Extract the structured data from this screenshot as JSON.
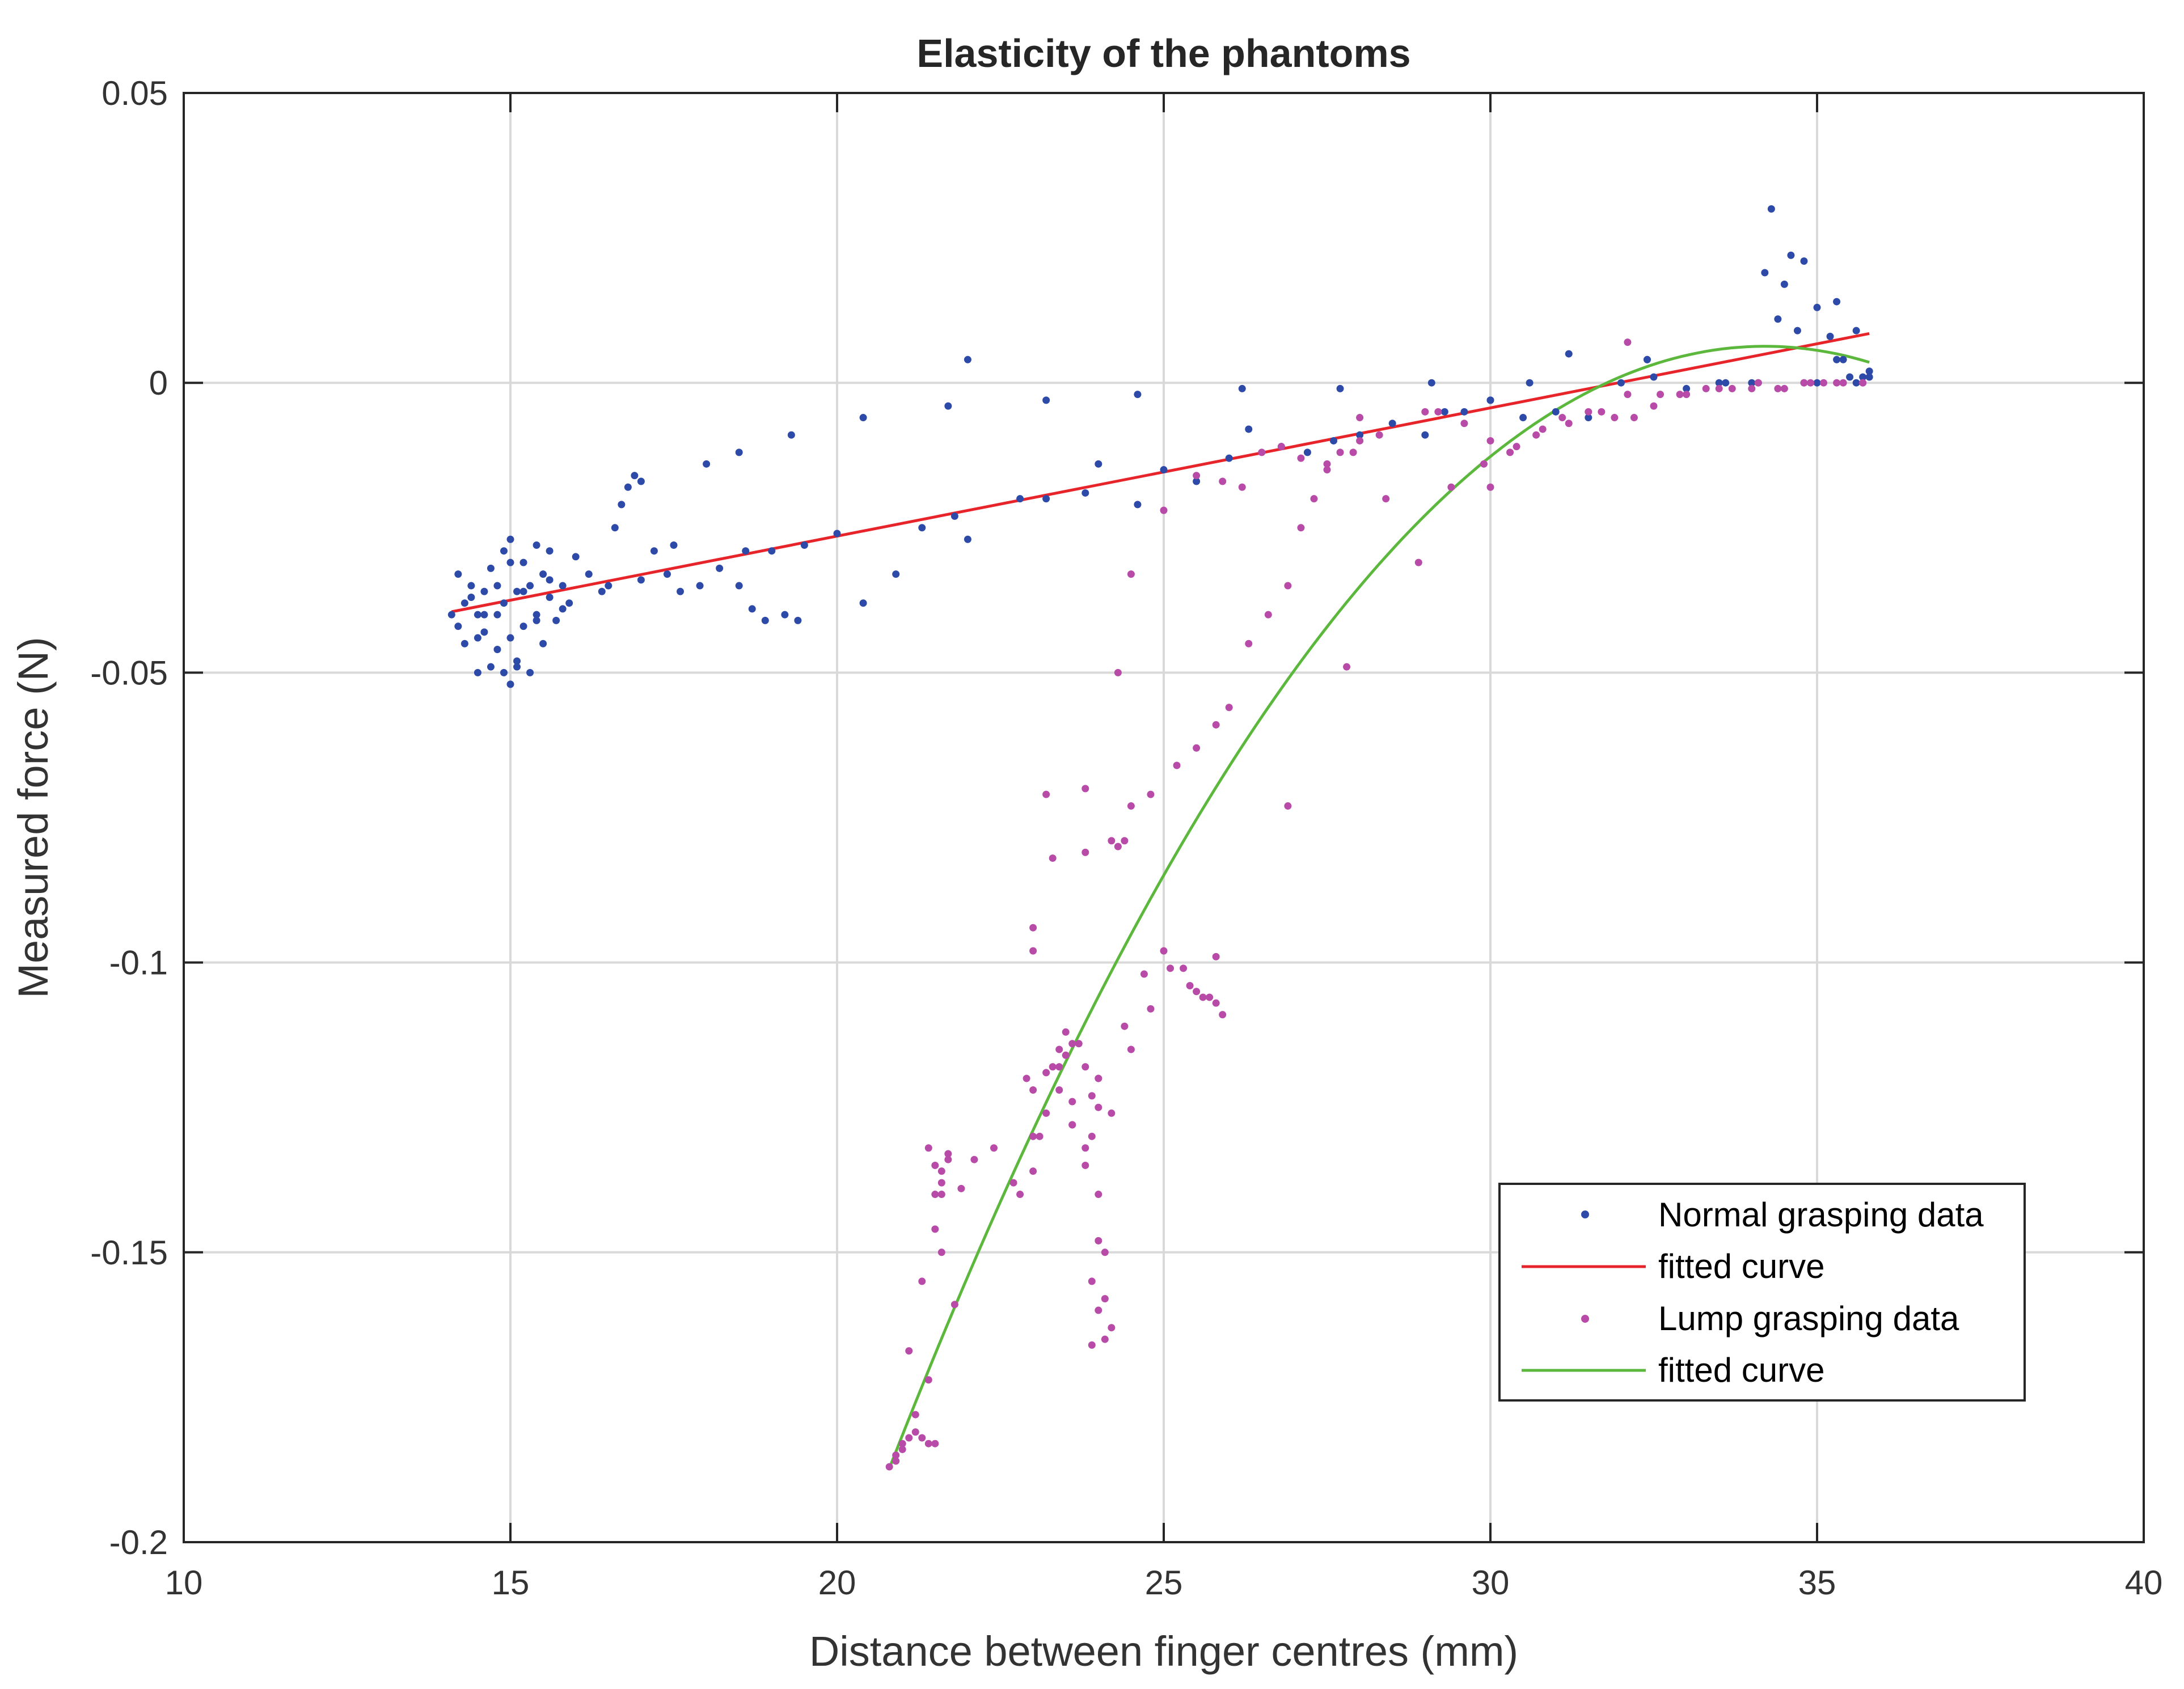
{
  "chart_data": {
    "type": "scatter",
    "title": "Elasticity of the phantoms",
    "xlabel": "Distance between finger centres (mm)",
    "ylabel": "Measured force (N)",
    "xlim": [
      10,
      40
    ],
    "ylim": [
      -0.2,
      0.05
    ],
    "xticks": [
      10,
      15,
      20,
      25,
      30,
      35,
      40
    ],
    "yticks": [
      0.05,
      0,
      -0.05,
      -0.1,
      -0.15,
      -0.2
    ],
    "xtick_labels": [
      "10",
      "15",
      "20",
      "25",
      "30",
      "35",
      "40"
    ],
    "ytick_labels": [
      "0.05",
      "0",
      "-0.05",
      "-0.1",
      "-0.15",
      "-0.2"
    ],
    "grid": true,
    "legend_position": "lower-right",
    "colors": {
      "normal": "#2e4aa8",
      "normal_fit": "#e8242b",
      "lump": "#b84aa8",
      "lump_fit": "#5cb83c",
      "axis": "#262626",
      "grid": "#d9d9d9"
    },
    "series": [
      {
        "name": "Normal grasping data",
        "kind": "scatter",
        "color_key": "normal",
        "x": [
          14.1,
          14.2,
          14.3,
          14.3,
          14.4,
          14.5,
          14.5,
          14.6,
          14.6,
          14.7,
          14.7,
          14.8,
          14.8,
          14.9,
          14.9,
          14.9,
          15.0,
          15.0,
          15.0,
          15.1,
          15.1,
          15.2,
          15.2,
          15.3,
          15.3,
          15.4,
          15.4,
          15.5,
          15.5,
          15.6,
          15.6,
          15.7,
          15.8,
          15.9,
          14.2,
          14.4,
          14.6,
          14.8,
          15.0,
          15.2,
          15.4,
          15.6,
          15.8,
          14.5,
          15.1,
          16.0,
          16.2,
          16.4,
          16.6,
          16.7,
          16.8,
          16.9,
          17.0,
          17.2,
          17.4,
          17.6,
          17.9,
          18.2,
          18.5,
          18.7,
          18.9,
          19.2,
          19.4,
          16.5,
          17.0,
          17.5,
          18.0,
          18.6,
          19.0,
          19.5,
          20.0,
          20.4,
          20.9,
          21.3,
          21.8,
          22.0,
          22.8,
          23.2,
          23.8,
          24.0,
          24.6,
          25.0,
          25.5,
          26.0,
          26.3,
          26.8,
          27.2,
          27.6,
          28.0,
          28.5,
          29.0,
          29.3,
          29.6,
          30.0,
          30.5,
          31.0,
          31.5,
          32.0,
          32.5,
          33.0,
          33.5,
          34.0,
          34.2,
          34.3,
          34.5,
          34.6,
          34.8,
          35.0,
          35.2,
          35.4,
          35.5,
          35.6,
          35.7,
          35.8,
          30.0,
          31.2,
          32.4,
          33.6,
          34.8,
          35.3,
          35.6,
          35.8,
          34.1,
          34.4,
          34.7,
          35.0,
          35.3,
          22.0,
          23.2,
          24.6,
          26.2,
          27.7,
          29.1,
          30.6,
          32.4,
          20.4,
          21.7,
          18.5,
          19.3
        ],
        "y": [
          -0.04,
          -0.042,
          -0.038,
          -0.045,
          -0.035,
          -0.05,
          -0.04,
          -0.043,
          -0.036,
          -0.049,
          -0.032,
          -0.04,
          -0.046,
          -0.029,
          -0.038,
          -0.05,
          -0.044,
          -0.027,
          -0.052,
          -0.036,
          -0.048,
          -0.031,
          -0.042,
          -0.035,
          -0.05,
          -0.028,
          -0.04,
          -0.033,
          -0.045,
          -0.037,
          -0.029,
          -0.041,
          -0.035,
          -0.038,
          -0.033,
          -0.037,
          -0.04,
          -0.035,
          -0.031,
          -0.036,
          -0.041,
          -0.034,
          -0.039,
          -0.044,
          -0.049,
          -0.03,
          -0.033,
          -0.036,
          -0.025,
          -0.021,
          -0.018,
          -0.016,
          -0.017,
          -0.029,
          -0.033,
          -0.036,
          -0.035,
          -0.032,
          -0.035,
          -0.039,
          -0.041,
          -0.04,
          -0.041,
          -0.035,
          -0.034,
          -0.028,
          -0.014,
          -0.029,
          -0.029,
          -0.028,
          -0.026,
          -0.038,
          -0.033,
          -0.025,
          -0.023,
          -0.027,
          -0.02,
          -0.02,
          -0.019,
          -0.014,
          -0.021,
          -0.015,
          -0.017,
          -0.013,
          -0.008,
          -0.011,
          -0.012,
          -0.01,
          -0.009,
          -0.007,
          -0.009,
          -0.005,
          -0.005,
          -0.003,
          -0.006,
          -0.005,
          -0.006,
          0.0,
          0.001,
          -0.001,
          0.0,
          0.0,
          0.019,
          0.03,
          0.017,
          0.022,
          0.021,
          0.013,
          0.008,
          0.004,
          0.001,
          0.0,
          0.001,
          0.001,
          -0.003,
          0.005,
          0.004,
          0.0,
          0.0,
          0.014,
          0.009,
          0.002,
          0.0,
          0.011,
          0.009,
          0.0,
          0.004,
          0.004,
          -0.003,
          -0.002,
          -0.001,
          -0.001,
          0.0,
          0.0,
          0.004,
          -0.006,
          -0.004,
          -0.012,
          -0.009
        ]
      },
      {
        "name": "fitted curve",
        "kind": "line",
        "color_key": "normal_fit",
        "x": [
          14.1,
          35.8
        ],
        "y": [
          -0.0395,
          0.0085
        ]
      },
      {
        "name": "Lump grasping data",
        "kind": "scatter",
        "color_key": "lump",
        "x": [
          20.8,
          20.9,
          21.0,
          21.1,
          21.2,
          21.3,
          21.4,
          21.5,
          21.6,
          21.7,
          20.9,
          21.1,
          21.3,
          21.5,
          21.5,
          21.6,
          21.7,
          21.6,
          21.5,
          21.4,
          21.6,
          21.8,
          21.4,
          21.2,
          21.0,
          21.9,
          22.1,
          22.4,
          22.7,
          22.9,
          23.0,
          23.1,
          23.2,
          23.3,
          23.4,
          23.5,
          23.6,
          23.7,
          23.8,
          23.9,
          23.0,
          23.2,
          23.4,
          23.6,
          23.8,
          24.0,
          23.9,
          24.0,
          24.1,
          24.0,
          23.9,
          24.1,
          24.0,
          24.2,
          24.1,
          23.9,
          24.0,
          23.8,
          23.6,
          23.4,
          23.2,
          23.0,
          22.8,
          23.0,
          23.5,
          24.2,
          24.5,
          24.8,
          25.1,
          25.4,
          25.6,
          25.8,
          25.9,
          25.7,
          25.5,
          25.3,
          25.0,
          24.7,
          24.4,
          24.2,
          24.3,
          24.5,
          24.8,
          25.2,
          25.5,
          25.8,
          26.0,
          26.3,
          26.6,
          26.9,
          27.1,
          27.3,
          27.5,
          27.7,
          28.0,
          28.3,
          27.9,
          27.5,
          27.1,
          26.8,
          26.5,
          26.2,
          25.9,
          25.5,
          25.0,
          24.5,
          24.3,
          23.8,
          23.3,
          23.0,
          23.6,
          24.0,
          28.4,
          28.9,
          29.4,
          29.9,
          30.3,
          30.7,
          31.1,
          31.5,
          31.9,
          32.2,
          32.5,
          32.9,
          33.3,
          33.7,
          34.1,
          34.5,
          34.8,
          35.1,
          35.4,
          35.7,
          29.2,
          29.6,
          30.0,
          30.4,
          30.8,
          31.2,
          31.7,
          32.1,
          32.6,
          33.0,
          33.5,
          34.0,
          34.4,
          34.9,
          35.3,
          35.7,
          27.8,
          28.0,
          29.0,
          30.0,
          32.1,
          26.9,
          25.8,
          24.4,
          23.8
        ],
        "y": [
          -0.187,
          -0.185,
          -0.183,
          -0.182,
          -0.181,
          -0.182,
          -0.183,
          -0.183,
          -0.138,
          -0.134,
          -0.186,
          -0.167,
          -0.155,
          -0.146,
          -0.14,
          -0.136,
          -0.133,
          -0.14,
          -0.135,
          -0.132,
          -0.15,
          -0.159,
          -0.172,
          -0.178,
          -0.184,
          -0.139,
          -0.134,
          -0.132,
          -0.138,
          -0.12,
          -0.122,
          -0.13,
          -0.119,
          -0.118,
          -0.115,
          -0.112,
          -0.124,
          -0.114,
          -0.118,
          -0.123,
          -0.094,
          -0.071,
          -0.118,
          -0.128,
          -0.135,
          -0.12,
          -0.13,
          -0.14,
          -0.15,
          -0.16,
          -0.166,
          -0.158,
          -0.148,
          -0.163,
          -0.165,
          -0.155,
          -0.125,
          -0.132,
          -0.128,
          -0.122,
          -0.126,
          -0.136,
          -0.14,
          -0.13,
          -0.116,
          -0.126,
          -0.115,
          -0.108,
          -0.101,
          -0.104,
          -0.106,
          -0.107,
          -0.109,
          -0.106,
          -0.105,
          -0.101,
          -0.098,
          -0.102,
          -0.111,
          -0.079,
          -0.08,
          -0.073,
          -0.071,
          -0.066,
          -0.063,
          -0.059,
          -0.056,
          -0.045,
          -0.04,
          -0.035,
          -0.025,
          -0.02,
          -0.015,
          -0.012,
          -0.01,
          -0.009,
          -0.012,
          -0.014,
          -0.013,
          -0.011,
          -0.012,
          -0.018,
          -0.017,
          -0.016,
          -0.022,
          -0.033,
          -0.05,
          -0.07,
          -0.082,
          -0.098,
          -0.114,
          -0.12,
          -0.02,
          -0.031,
          -0.018,
          -0.014,
          -0.012,
          -0.009,
          -0.006,
          -0.005,
          -0.006,
          -0.006,
          -0.004,
          -0.002,
          -0.001,
          -0.001,
          0.0,
          -0.001,
          0.0,
          0.0,
          0.0,
          0.0,
          -0.005,
          -0.007,
          -0.01,
          -0.011,
          -0.008,
          -0.007,
          -0.005,
          -0.002,
          -0.002,
          -0.002,
          -0.001,
          -0.001,
          -0.001,
          0.0,
          0.0,
          0.0,
          -0.049,
          -0.006,
          -0.005,
          -0.018,
          0.007,
          -0.073,
          -0.099,
          -0.079,
          -0.081
        ]
      },
      {
        "name": "fitted curve",
        "kind": "line",
        "color_key": "lump_fit",
        "curve": "quadratic",
        "x_range": [
          20.8,
          35.8
        ],
        "vertex_x": 34.2,
        "vertex_y": 0.0063,
        "a": -0.001078
      }
    ],
    "legend": [
      {
        "label": "Normal grasping data",
        "marker": "dot",
        "color_key": "normal"
      },
      {
        "label": "fitted curve",
        "marker": "line",
        "color_key": "normal_fit"
      },
      {
        "label": "Lump grasping data",
        "marker": "dot",
        "color_key": "lump"
      },
      {
        "label": "fitted curve",
        "marker": "line",
        "color_key": "lump_fit"
      }
    ]
  }
}
